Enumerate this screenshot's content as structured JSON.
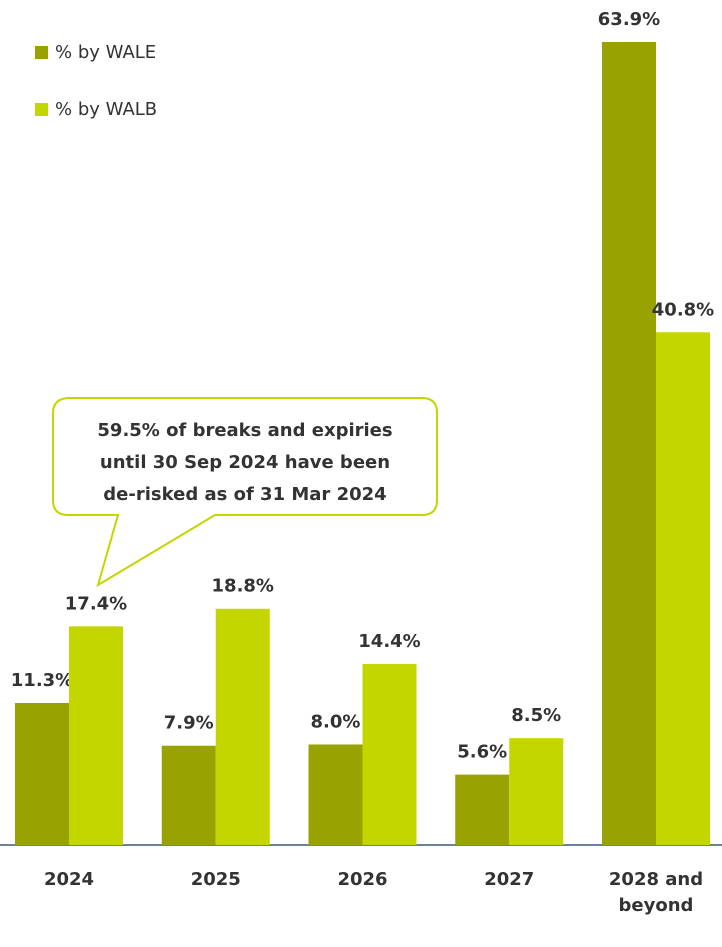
{
  "chart_data": {
    "type": "bar",
    "categories": [
      "2024",
      "2025",
      "2026",
      "2027",
      "2028 and beyond"
    ],
    "series": [
      {
        "name": "% by WALE",
        "color": "#98a200",
        "values": [
          11.3,
          7.9,
          8.0,
          5.6,
          63.9
        ],
        "value_labels": [
          "11.3%",
          "7.9%",
          "8.0%",
          "5.6%",
          "63.9%"
        ]
      },
      {
        "name": "% by WALB",
        "color": "#c4d600",
        "values": [
          17.4,
          18.8,
          14.4,
          8.5,
          40.8
        ],
        "value_labels": [
          "17.4%",
          "18.8%",
          "14.4%",
          "8.5%",
          "40.8%"
        ]
      }
    ],
    "annotation": [
      "59.5% of breaks and expiries",
      "until 30 Sep 2024 have been",
      "de-risked as of 31 Mar 2024"
    ],
    "legend": "top-left"
  }
}
